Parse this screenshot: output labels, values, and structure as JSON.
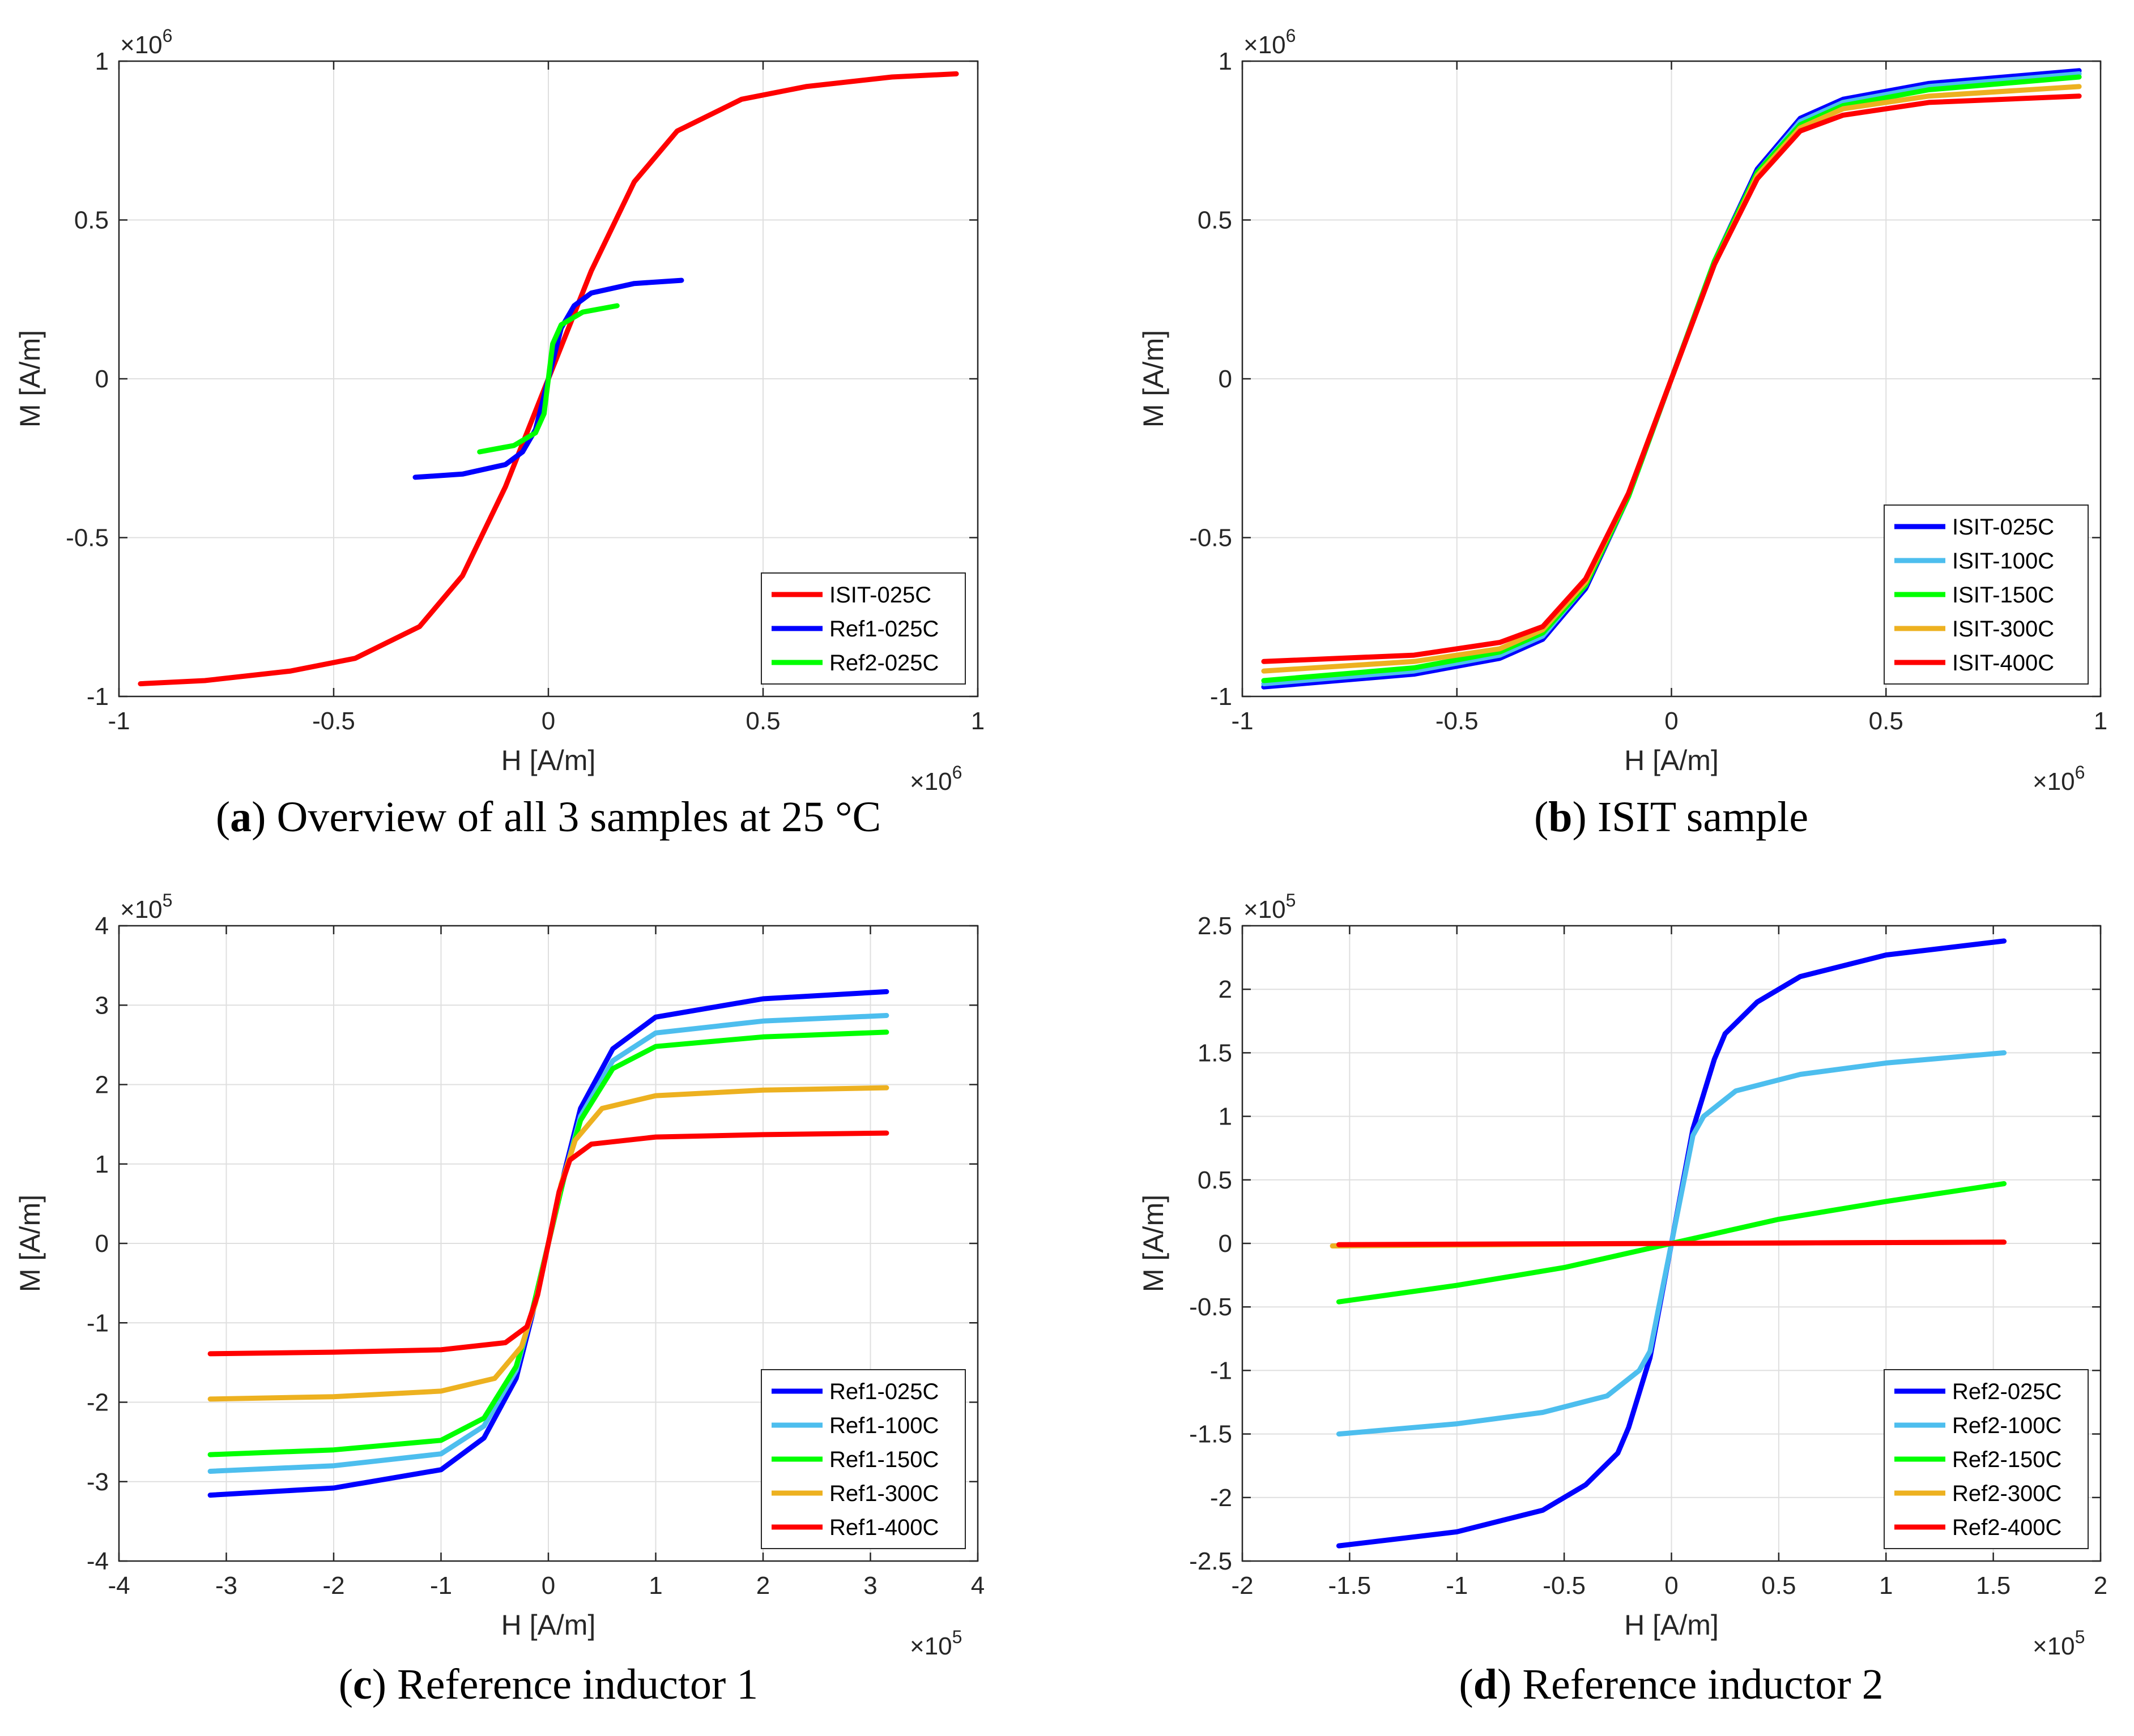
{
  "chart_data": [
    {
      "type": "line",
      "title": "",
      "caption_letter": "a",
      "caption_text": "Overview of all 3 samples at 25 °C",
      "xlabel": "H [A/m]",
      "ylabel": "M [A/m]",
      "x_multiplier": "×10",
      "x_exponent": "6",
      "y_multiplier": "×10",
      "y_exponent": "6",
      "xlim": [
        -1,
        1
      ],
      "ylim": [
        -1,
        1
      ],
      "xticks": [
        -1,
        -0.5,
        0,
        0.5,
        1
      ],
      "xtick_labels": [
        "-1",
        "-0.5",
        "0",
        "0.5",
        "1"
      ],
      "yticks": [
        -1,
        -0.5,
        0,
        0.5,
        1
      ],
      "ytick_labels": [
        "-1",
        "-0.5",
        "0",
        "0.5",
        "1"
      ],
      "grid": true,
      "legend_position": "bottom-right",
      "series": [
        {
          "name": "ISIT-025C",
          "color": "#ff0000",
          "x": [
            -0.95,
            -0.8,
            -0.6,
            -0.45,
            -0.3,
            -0.2,
            -0.1,
            0,
            0.1,
            0.2,
            0.3,
            0.45,
            0.6,
            0.8,
            0.95
          ],
          "y": [
            -0.96,
            -0.95,
            -0.92,
            -0.88,
            -0.78,
            -0.62,
            -0.34,
            0,
            0.34,
            0.62,
            0.78,
            0.88,
            0.92,
            0.95,
            0.96
          ]
        },
        {
          "name": "Ref1-025C",
          "color": "#0000ff",
          "x": [
            -0.31,
            -0.2,
            -0.1,
            -0.06,
            -0.03,
            0,
            0.03,
            0.06,
            0.1,
            0.2,
            0.31
          ],
          "y": [
            -0.31,
            -0.3,
            -0.27,
            -0.23,
            -0.16,
            0,
            0.16,
            0.23,
            0.27,
            0.3,
            0.31
          ]
        },
        {
          "name": "Ref2-025C",
          "color": "#00ff00",
          "x": [
            -0.16,
            -0.08,
            -0.03,
            -0.01,
            0,
            0.01,
            0.03,
            0.08,
            0.16
          ],
          "y": [
            -0.23,
            -0.21,
            -0.17,
            -0.11,
            0,
            0.11,
            0.17,
            0.21,
            0.23
          ]
        }
      ]
    },
    {
      "type": "line",
      "title": "",
      "caption_letter": "b",
      "caption_text": "ISIT sample",
      "xlabel": "H [A/m]",
      "ylabel": "M [A/m]",
      "x_multiplier": "×10",
      "x_exponent": "6",
      "y_multiplier": "×10",
      "y_exponent": "6",
      "xlim": [
        -1,
        1
      ],
      "ylim": [
        -1,
        1
      ],
      "xticks": [
        -1,
        -0.5,
        0,
        0.5,
        1
      ],
      "xtick_labels": [
        "-1",
        "-0.5",
        "0",
        "0.5",
        "1"
      ],
      "yticks": [
        -1,
        -0.5,
        0,
        0.5,
        1
      ],
      "ytick_labels": [
        "-1",
        "-0.5",
        "0",
        "0.5",
        "1"
      ],
      "grid": true,
      "legend_position": "bottom-right",
      "series": [
        {
          "name": "ISIT-025C",
          "color": "#0000ff",
          "x": [
            -0.95,
            -0.6,
            -0.4,
            -0.3,
            -0.2,
            -0.1,
            0,
            0.1,
            0.2,
            0.3,
            0.4,
            0.6,
            0.95
          ],
          "y": [
            -0.97,
            -0.93,
            -0.88,
            -0.82,
            -0.66,
            -0.37,
            0,
            0.37,
            0.66,
            0.82,
            0.88,
            0.93,
            0.97
          ]
        },
        {
          "name": "ISIT-100C",
          "color": "#4dbeee",
          "x": [
            -0.95,
            -0.6,
            -0.4,
            -0.3,
            -0.2,
            -0.1,
            0,
            0.1,
            0.2,
            0.3,
            0.4,
            0.6,
            0.95
          ],
          "y": [
            -0.96,
            -0.92,
            -0.87,
            -0.81,
            -0.65,
            -0.37,
            0,
            0.37,
            0.65,
            0.81,
            0.87,
            0.92,
            0.96
          ]
        },
        {
          "name": "ISIT-150C",
          "color": "#00ff00",
          "x": [
            -0.95,
            -0.6,
            -0.4,
            -0.3,
            -0.2,
            -0.1,
            0,
            0.1,
            0.2,
            0.3,
            0.4,
            0.6,
            0.95
          ],
          "y": [
            -0.95,
            -0.91,
            -0.86,
            -0.8,
            -0.65,
            -0.37,
            0,
            0.37,
            0.65,
            0.8,
            0.86,
            0.91,
            0.95
          ]
        },
        {
          "name": "ISIT-300C",
          "color": "#edb120",
          "x": [
            -0.95,
            -0.6,
            -0.4,
            -0.3,
            -0.2,
            -0.1,
            0,
            0.1,
            0.2,
            0.3,
            0.4,
            0.6,
            0.95
          ],
          "y": [
            -0.92,
            -0.89,
            -0.85,
            -0.79,
            -0.64,
            -0.36,
            0,
            0.36,
            0.64,
            0.79,
            0.85,
            0.89,
            0.92
          ]
        },
        {
          "name": "ISIT-400C",
          "color": "#ff0000",
          "x": [
            -0.95,
            -0.6,
            -0.4,
            -0.3,
            -0.2,
            -0.1,
            0,
            0.1,
            0.2,
            0.3,
            0.4,
            0.6,
            0.95
          ],
          "y": [
            -0.89,
            -0.87,
            -0.83,
            -0.78,
            -0.63,
            -0.36,
            0,
            0.36,
            0.63,
            0.78,
            0.83,
            0.87,
            0.89
          ]
        }
      ]
    },
    {
      "type": "line",
      "title": "",
      "caption_letter": "c",
      "caption_text": "Reference inductor 1",
      "xlabel": "H [A/m]",
      "ylabel": "M [A/m]",
      "x_multiplier": "×10",
      "x_exponent": "5",
      "y_multiplier": "×10",
      "y_exponent": "5",
      "xlim": [
        -4,
        4
      ],
      "ylim": [
        -4,
        4
      ],
      "xticks": [
        -4,
        -3,
        -2,
        -1,
        0,
        1,
        2,
        3,
        4
      ],
      "xtick_labels": [
        "-4",
        "-3",
        "-2",
        "-1",
        "0",
        "1",
        "2",
        "3",
        "4"
      ],
      "yticks": [
        -4,
        -3,
        -2,
        -1,
        0,
        1,
        2,
        3,
        4
      ],
      "ytick_labels": [
        "-4",
        "-3",
        "-2",
        "-1",
        "0",
        "1",
        "2",
        "3",
        "4"
      ],
      "grid": true,
      "legend_position": "bottom-right",
      "series": [
        {
          "name": "Ref1-025C",
          "color": "#0000ff",
          "x": [
            -3.15,
            -2,
            -1,
            -0.6,
            -0.3,
            -0.15,
            0,
            0.15,
            0.3,
            0.6,
            1,
            2,
            3.15
          ],
          "y": [
            -3.17,
            -3.08,
            -2.85,
            -2.45,
            -1.7,
            -0.9,
            0,
            0.9,
            1.7,
            2.45,
            2.85,
            3.08,
            3.17
          ]
        },
        {
          "name": "Ref1-100C",
          "color": "#4dbeee",
          "x": [
            -3.15,
            -2,
            -1,
            -0.6,
            -0.3,
            -0.15,
            0,
            0.15,
            0.3,
            0.6,
            1,
            2,
            3.15
          ],
          "y": [
            -2.87,
            -2.8,
            -2.65,
            -2.3,
            -1.6,
            -0.85,
            0,
            0.85,
            1.6,
            2.3,
            2.65,
            2.8,
            2.87
          ]
        },
        {
          "name": "Ref1-150C",
          "color": "#00ff00",
          "x": [
            -3.15,
            -2,
            -1,
            -0.6,
            -0.3,
            -0.15,
            0,
            0.15,
            0.3,
            0.6,
            1,
            2,
            3.15
          ],
          "y": [
            -2.66,
            -2.6,
            -2.48,
            -2.2,
            -1.55,
            -0.85,
            0,
            0.85,
            1.55,
            2.2,
            2.48,
            2.6,
            2.66
          ]
        },
        {
          "name": "Ref1-300C",
          "color": "#edb120",
          "x": [
            -3.15,
            -2,
            -1,
            -0.5,
            -0.25,
            -0.12,
            0,
            0.12,
            0.25,
            0.5,
            1,
            2,
            3.15
          ],
          "y": [
            -1.96,
            -1.93,
            -1.86,
            -1.7,
            -1.3,
            -0.75,
            0,
            0.75,
            1.3,
            1.7,
            1.86,
            1.93,
            1.96
          ]
        },
        {
          "name": "Ref1-400C",
          "color": "#ff0000",
          "x": [
            -3.15,
            -2,
            -1,
            -0.4,
            -0.2,
            -0.1,
            0,
            0.1,
            0.2,
            0.4,
            1,
            2,
            3.15
          ],
          "y": [
            -1.39,
            -1.37,
            -1.34,
            -1.25,
            -1.05,
            -0.65,
            0,
            0.65,
            1.05,
            1.25,
            1.34,
            1.37,
            1.39
          ]
        }
      ]
    },
    {
      "type": "line",
      "title": "",
      "caption_letter": "d",
      "caption_text": "Reference inductor 2",
      "xlabel": "H [A/m]",
      "ylabel": "M [A/m]",
      "x_multiplier": "×10",
      "x_exponent": "5",
      "y_multiplier": "×10",
      "y_exponent": "5",
      "xlim": [
        -2,
        2
      ],
      "ylim": [
        -2.5,
        2.5
      ],
      "xticks": [
        -2,
        -1.5,
        -1,
        -0.5,
        0,
        0.5,
        1,
        1.5,
        2
      ],
      "xtick_labels": [
        "-2",
        "-1.5",
        "-1",
        "-0.5",
        "0",
        "0.5",
        "1",
        "1.5",
        "2"
      ],
      "yticks": [
        -2.5,
        -2,
        -1.5,
        -1,
        -0.5,
        0,
        0.5,
        1,
        1.5,
        2,
        2.5
      ],
      "ytick_labels": [
        "-2.5",
        "-2",
        "-1.5",
        "-1",
        "-0.5",
        "0",
        "0.5",
        "1",
        "1.5",
        "2",
        "2.5"
      ],
      "grid": true,
      "legend_position": "bottom-right",
      "series": [
        {
          "name": "Ref2-025C",
          "color": "#0000ff",
          "x": [
            -1.55,
            -1.0,
            -0.6,
            -0.4,
            -0.25,
            -0.2,
            -0.1,
            0,
            0.1,
            0.2,
            0.25,
            0.4,
            0.6,
            1.0,
            1.55
          ],
          "y": [
            -2.38,
            -2.27,
            -2.1,
            -1.9,
            -1.65,
            -1.45,
            -0.9,
            0,
            0.9,
            1.45,
            1.65,
            1.9,
            2.1,
            2.27,
            2.38
          ]
        },
        {
          "name": "Ref2-100C",
          "color": "#4dbeee",
          "x": [
            -1.55,
            -1.0,
            -0.6,
            -0.3,
            -0.15,
            -0.1,
            0,
            0.1,
            0.15,
            0.3,
            0.6,
            1.0,
            1.55
          ],
          "y": [
            -1.5,
            -1.42,
            -1.33,
            -1.2,
            -1.0,
            -0.85,
            0,
            0.85,
            1.0,
            1.2,
            1.33,
            1.42,
            1.5
          ]
        },
        {
          "name": "Ref2-150C",
          "color": "#00ff00",
          "x": [
            -1.55,
            -1.0,
            -0.5,
            0,
            0.5,
            1.0,
            1.55
          ],
          "y": [
            -0.46,
            -0.33,
            -0.19,
            0,
            0.19,
            0.33,
            0.47
          ]
        },
        {
          "name": "Ref2-300C",
          "color": "#edb120",
          "x": [
            -1.58,
            0,
            1.55
          ],
          "y": [
            -0.02,
            0,
            0.01
          ]
        },
        {
          "name": "Ref2-400C",
          "color": "#ff0000",
          "x": [
            -1.55,
            0,
            1.55
          ],
          "y": [
            -0.01,
            0,
            0.01
          ]
        }
      ]
    }
  ]
}
